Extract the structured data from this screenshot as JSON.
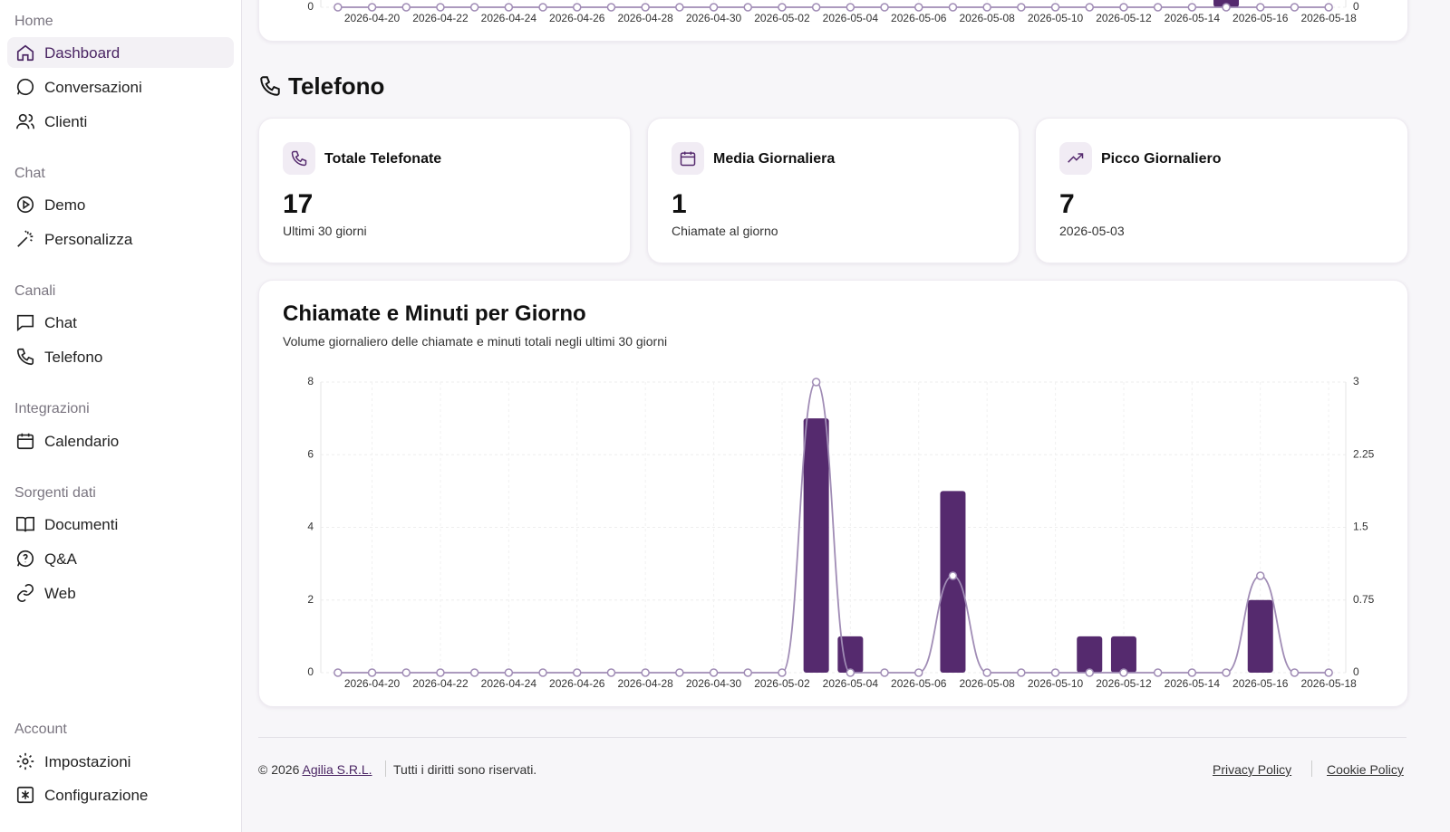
{
  "sidebar": {
    "sections": [
      {
        "title": "Home",
        "items": [
          "Dashboard",
          "Conversazioni",
          "Clienti"
        ]
      },
      {
        "title": "Chat",
        "items": [
          "Demo",
          "Personalizza"
        ]
      },
      {
        "title": "Canali",
        "items": [
          "Chat",
          "Telefono"
        ]
      },
      {
        "title": "Integrazioni",
        "items": [
          "Calendario"
        ]
      },
      {
        "title": "Sorgenti dati",
        "items": [
          "Documenti",
          "Q&A",
          "Web"
        ]
      },
      {
        "title": "Account",
        "items": [
          "Impostazioni",
          "Configurazione"
        ]
      }
    ]
  },
  "section_title": "Telefono",
  "stats": [
    {
      "title": "Totale Telefonate",
      "value": "17",
      "caption": "Ultimi 30 giorni"
    },
    {
      "title": "Media Giornaliera",
      "value": "1",
      "caption": "Chiamate al giorno"
    },
    {
      "title": "Picco Giornaliero",
      "value": "7",
      "caption": "2026-05-03"
    }
  ],
  "chart_data": [
    {
      "type": "combo",
      "categories": [
        null,
        "2026-04-20",
        null,
        "2026-04-22",
        null,
        "2026-04-24",
        null,
        "2026-04-26",
        null,
        "2026-04-28",
        null,
        "2026-04-30",
        null,
        "2026-05-02",
        null,
        "2026-05-04",
        null,
        "2026-05-06",
        null,
        "2026-05-08",
        null,
        "2026-05-10",
        null,
        "2026-05-12",
        null,
        "2026-05-14",
        null,
        "2026-05-16",
        null,
        "2026-05-18"
      ],
      "series": [
        {
          "type": "bar",
          "color": "#552a6e",
          "values": [
            0,
            0,
            0,
            0,
            0,
            0,
            0,
            0,
            0,
            0,
            0,
            0,
            0,
            0,
            0,
            0,
            0,
            0,
            0,
            0,
            0,
            0,
            0,
            0,
            0,
            0,
            1,
            0,
            0,
            0
          ]
        },
        {
          "type": "line",
          "axis": "y2",
          "color": "#a08cb5",
          "values": [
            0,
            0,
            0,
            0,
            0,
            0,
            0,
            0,
            0,
            0,
            0,
            0,
            0,
            0,
            0,
            0,
            0,
            0,
            0,
            0,
            0,
            0,
            0,
            0,
            0,
            0,
            0,
            0,
            0,
            0
          ]
        }
      ],
      "ylim": [
        0,
        8
      ],
      "yticks": [
        0
      ],
      "y2lim": [
        0,
        3
      ],
      "y2ticks": [
        0
      ],
      "grid": true
    },
    {
      "type": "combo",
      "title": "Chiamate e Minuti per Giorno",
      "subtitle": "Volume giornaliero delle chiamate e minuti totali negli ultimi 30 giorni",
      "categories": [
        null,
        "2026-04-20",
        null,
        "2026-04-22",
        null,
        "2026-04-24",
        null,
        "2026-04-26",
        null,
        "2026-04-28",
        null,
        "2026-04-30",
        null,
        "2026-05-02",
        null,
        "2026-05-04",
        null,
        "2026-05-06",
        null,
        "2026-05-08",
        null,
        "2026-05-10",
        null,
        "2026-05-12",
        null,
        "2026-05-14",
        null,
        "2026-05-16",
        null,
        "2026-05-18"
      ],
      "series": [
        {
          "type": "bar",
          "color": "#552a6e",
          "values": [
            0,
            0,
            0,
            0,
            0,
            0,
            0,
            0,
            0,
            0,
            0,
            0,
            0,
            0,
            7,
            1,
            0,
            0,
            5,
            0,
            0,
            0,
            1,
            1,
            0,
            0,
            0,
            2,
            0,
            0
          ]
        },
        {
          "type": "line",
          "axis": "y2",
          "color": "#a08cb5",
          "values": [
            0,
            0,
            0,
            0,
            0,
            0,
            0,
            0,
            0,
            0,
            0,
            0,
            0,
            0,
            3,
            0,
            0,
            0,
            1,
            0,
            0,
            0,
            0,
            0,
            0,
            0,
            0,
            1,
            0,
            0
          ]
        }
      ],
      "ylim": [
        0,
        8
      ],
      "yticks": [
        0,
        2,
        4,
        6,
        8
      ],
      "y2lim": [
        0,
        3
      ],
      "y2ticks": [
        0,
        0.75,
        1.5,
        2.25,
        3
      ],
      "grid": true
    }
  ],
  "footer": {
    "copyright": "© 2026",
    "company": "Agilia S.R.L.",
    "rights": "Tutti i diritti sono riservati.",
    "links": [
      "Privacy Policy",
      "Cookie Policy"
    ]
  }
}
